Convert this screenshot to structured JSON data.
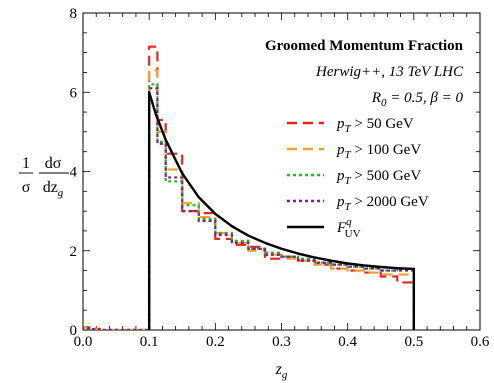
{
  "chart_data": {
    "type": "line",
    "title": "",
    "xlabel": "z_g",
    "ylabel": "(1/σ) dσ/dz_g",
    "xlim": [
      0.0,
      0.6
    ],
    "ylim": [
      0,
      8
    ],
    "xticks": [
      "0.0",
      "0.1",
      "0.2",
      "0.3",
      "0.4",
      "0.5",
      "0.6"
    ],
    "yticks": [
      "0",
      "2",
      "4",
      "6",
      "8"
    ],
    "grid": false,
    "legend_position": "right-center",
    "annotations": [
      "Groomed Momentum Fraction",
      "Herwig++, 13 TeV LHC",
      "R0 = 0.5, β = 0"
    ],
    "bin_edges": [
      0.0,
      0.0125,
      0.025,
      0.05,
      0.075,
      0.1,
      0.1125,
      0.125,
      0.15,
      0.175,
      0.2,
      0.225,
      0.25,
      0.275,
      0.3,
      0.325,
      0.35,
      0.375,
      0.4,
      0.425,
      0.45,
      0.475,
      0.5
    ],
    "series": [
      {
        "name": "pT > 50 GeV",
        "color": "#e8251f",
        "dash": "dashed",
        "style": "step",
        "values": [
          0.07,
          0.03,
          0.0,
          0.0,
          0.0,
          7.15,
          5.3,
          4.45,
          3.0,
          2.95,
          2.3,
          2.15,
          2.1,
          1.8,
          1.85,
          1.75,
          1.65,
          1.55,
          1.5,
          1.45,
          1.35,
          1.2
        ]
      },
      {
        "name": "pT > 100 GeV",
        "color": "#f5a02a",
        "dash": "dashed",
        "style": "step",
        "values": [
          0.06,
          0.03,
          0.0,
          0.0,
          0.0,
          6.55,
          5.0,
          4.05,
          3.2,
          2.85,
          2.45,
          2.2,
          2.0,
          1.9,
          1.8,
          1.75,
          1.65,
          1.55,
          1.5,
          1.45,
          1.4,
          1.4
        ]
      },
      {
        "name": "pT > 500 GeV",
        "color": "#2fb02f",
        "dash": "dotted",
        "style": "step",
        "values": [
          0.05,
          0.02,
          0.0,
          0.0,
          0.0,
          6.2,
          4.75,
          3.75,
          3.15,
          2.8,
          2.45,
          2.25,
          2.05,
          1.95,
          1.85,
          1.8,
          1.7,
          1.65,
          1.6,
          1.55,
          1.5,
          1.55
        ]
      },
      {
        "name": "pT > 2000 GeV",
        "color": "#7a1f8c",
        "dash": "dotted",
        "style": "step",
        "values": [
          0.05,
          0.02,
          0.0,
          0.0,
          0.0,
          6.1,
          4.7,
          3.85,
          3.0,
          2.75,
          2.4,
          2.2,
          2.05,
          1.9,
          1.85,
          1.75,
          1.7,
          1.65,
          1.6,
          1.55,
          1.5,
          1.5
        ]
      },
      {
        "name": "F_UV^q",
        "color": "#000000",
        "dash": "solid",
        "style": "curve",
        "x": [
          0.1,
          0.11,
          0.125,
          0.15,
          0.175,
          0.2,
          0.225,
          0.25,
          0.275,
          0.3,
          0.325,
          0.35,
          0.375,
          0.4,
          0.425,
          0.45,
          0.475,
          0.5
        ],
        "values": [
          6.0,
          5.45,
          4.8,
          3.95,
          3.35,
          2.93,
          2.62,
          2.38,
          2.2,
          2.05,
          1.93,
          1.83,
          1.75,
          1.68,
          1.63,
          1.59,
          1.56,
          1.54
        ]
      }
    ]
  }
}
